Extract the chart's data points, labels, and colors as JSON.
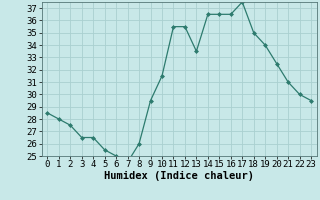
{
  "x": [
    0,
    1,
    2,
    3,
    4,
    5,
    6,
    7,
    8,
    9,
    10,
    11,
    12,
    13,
    14,
    15,
    16,
    17,
    18,
    19,
    20,
    21,
    22,
    23
  ],
  "y": [
    28.5,
    28.0,
    27.5,
    26.5,
    26.5,
    25.5,
    25.0,
    24.5,
    26.0,
    29.5,
    31.5,
    35.5,
    35.5,
    33.5,
    36.5,
    36.5,
    36.5,
    37.5,
    35.0,
    34.0,
    32.5,
    31.0,
    30.0,
    29.5
  ],
  "line_color": "#2d7b6e",
  "marker": "D",
  "marker_size": 2.0,
  "bg_color": "#c8e8e8",
  "grid_color": "#aad0d0",
  "xlabel": "Humidex (Indice chaleur)",
  "xlim": [
    -0.5,
    23.5
  ],
  "ylim": [
    25,
    37.5
  ],
  "yticks": [
    25,
    26,
    27,
    28,
    29,
    30,
    31,
    32,
    33,
    34,
    35,
    36,
    37
  ],
  "xticks": [
    0,
    1,
    2,
    3,
    4,
    5,
    6,
    7,
    8,
    9,
    10,
    11,
    12,
    13,
    14,
    15,
    16,
    17,
    18,
    19,
    20,
    21,
    22,
    23
  ],
  "tick_fontsize": 6.5,
  "xlabel_fontsize": 7.5
}
